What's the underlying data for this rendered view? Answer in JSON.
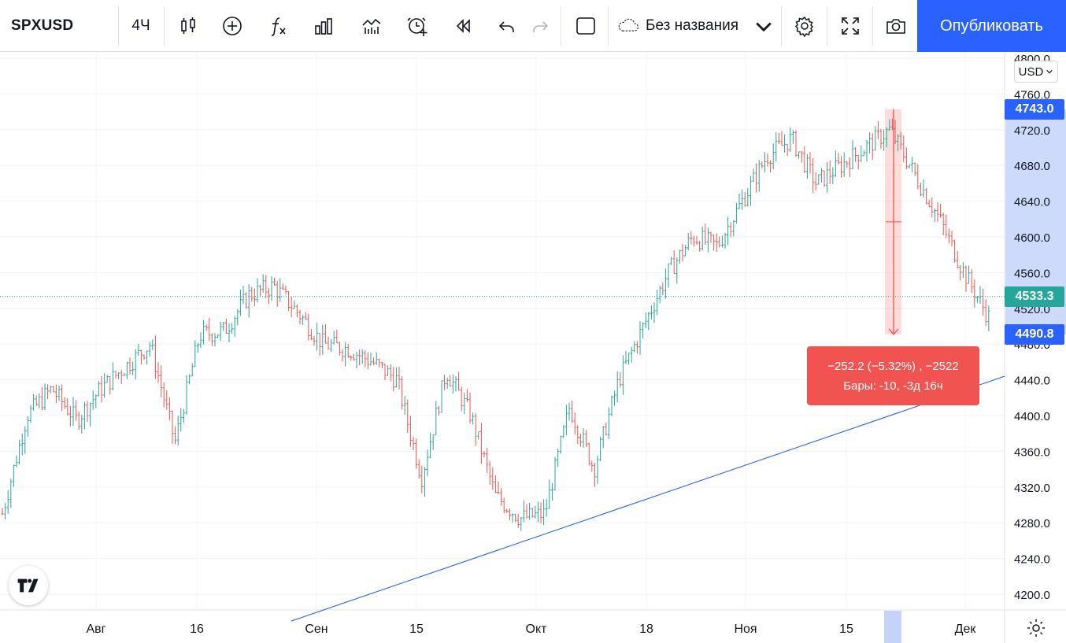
{
  "toolbar": {
    "symbol": "SPXUSD",
    "interval": "4Ч",
    "layout_name": "Без названия",
    "publish_label": "Опубликовать",
    "icons": [
      "candles-icon",
      "plus-circle-icon",
      "indicators-fx-icon",
      "bar-chart-icon",
      "compare-icon",
      "alert-icon",
      "replay-icon",
      "undo-icon",
      "redo-icon",
      "rectangle-icon",
      "cloud-icon",
      "chevron-down-icon",
      "gear-icon",
      "fullscreen-icon",
      "camera-icon"
    ]
  },
  "price_axis": {
    "currency": "USD",
    "ticks": [
      "4800.0",
      "4760.0",
      "4720.0",
      "4680.0",
      "4640.0",
      "4600.0",
      "4560.0",
      "4520.0",
      "4480.0",
      "4440.0",
      "4400.0",
      "4360.0",
      "4320.0",
      "4280.0",
      "4240.0",
      "4200.0"
    ],
    "tick_values": [
      4800,
      4760,
      4720,
      4680,
      4640,
      4600,
      4560,
      4520,
      4480,
      4440,
      4400,
      4360,
      4320,
      4280,
      4240,
      4200
    ],
    "badge_high": "4743.0",
    "badge_last": "4533.3",
    "badge_low": "4490.8",
    "color_blue": "#2962ff",
    "color_green": "#26a69a"
  },
  "time_axis": {
    "labels": [
      "Авг",
      "16",
      "Сен",
      "15",
      "Окт",
      "18",
      "Ноя",
      "15",
      "Дек"
    ]
  },
  "measure": {
    "line1": "−252.2 (−5.32%) , −2522",
    "line2": "Бары: -10, -3д 16ч",
    "from_price": 4743.0,
    "to_price": 4490.8,
    "color": "#f05350"
  },
  "trendline": {
    "color": "#2962ff",
    "start_price": 4170,
    "end_price": 4444
  },
  "colors": {
    "up": "#26a69a",
    "down": "#ef5350",
    "highlight": "#c5d3fb"
  },
  "chart_data": {
    "type": "bar",
    "title": "",
    "xlabel": "",
    "ylabel": "",
    "ylim": [
      4200,
      4800
    ],
    "x_labels": [
      "Авг",
      "16",
      "Сен",
      "15",
      "Окт",
      "18",
      "Ноя",
      "15",
      "Дек"
    ],
    "waypoints": [
      [
        4290
      ],
      [
        4400
      ],
      [
        4430
      ],
      [
        4395
      ],
      [
        4430
      ],
      [
        4455
      ],
      [
        4480
      ],
      [
        4370
      ],
      [
        4490
      ],
      [
        4495
      ],
      [
        4535
      ],
      [
        4545
      ],
      [
        4515
      ],
      [
        4480
      ],
      [
        4475
      ],
      [
        4460
      ],
      [
        4440
      ],
      [
        4330
      ],
      [
        4450
      ],
      [
        4400
      ],
      [
        4310
      ],
      [
        4285
      ],
      [
        4290
      ],
      [
        4410
      ],
      [
        4340
      ],
      [
        4440
      ],
      [
        4500
      ],
      [
        4560
      ],
      [
        4600
      ],
      [
        4590
      ],
      [
        4640
      ],
      [
        4690
      ],
      [
        4710
      ],
      [
        4660
      ],
      [
        4680
      ],
      [
        4700
      ],
      [
        4720
      ],
      [
        4670
      ],
      [
        4620
      ],
      [
        4560
      ],
      [
        4510
      ]
    ],
    "last_price": 4533.3
  }
}
